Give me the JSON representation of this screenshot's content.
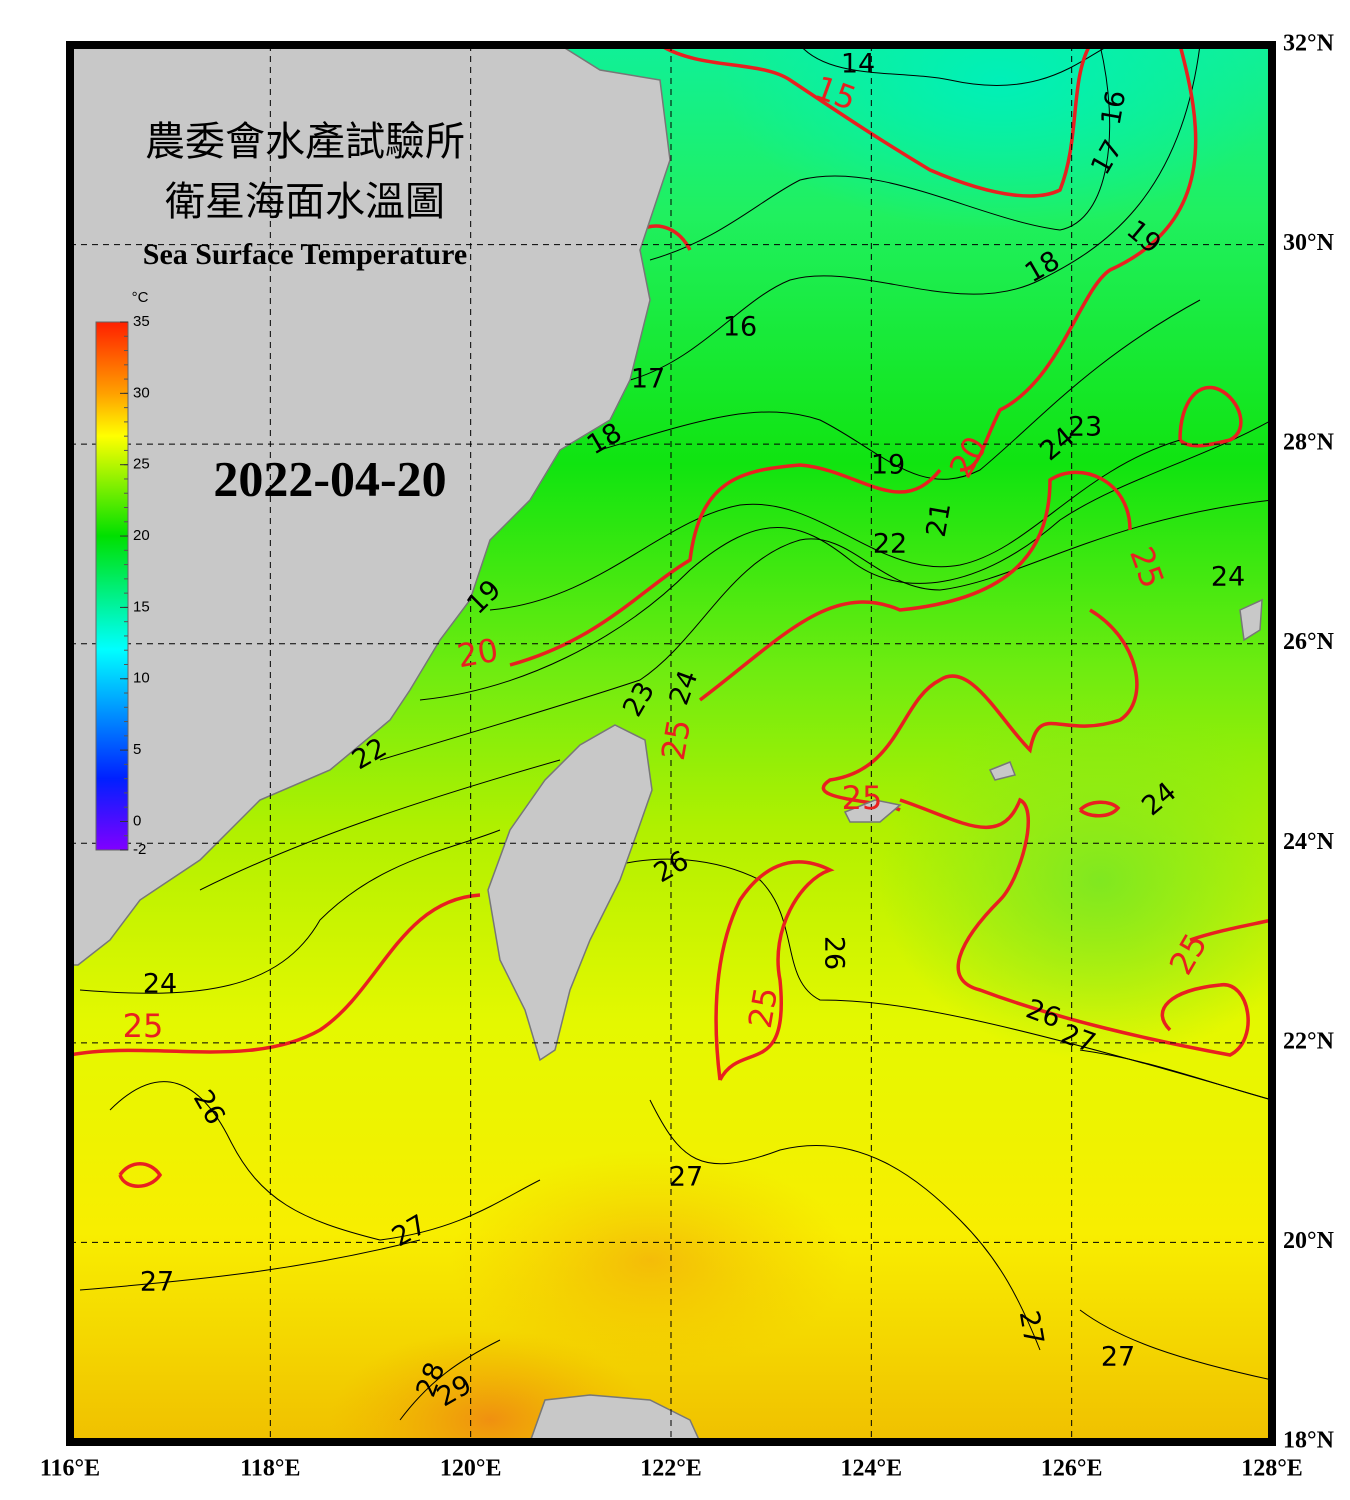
{
  "header": {
    "title_zh_1": "農委會水產試驗所",
    "title_zh_2": "衛星海面水溫圖",
    "title_en": "Sea Surface Temperature",
    "date": "2022-04-20"
  },
  "colorbar": {
    "unit": "°C",
    "range": [
      -2,
      35
    ],
    "ticks": [
      35,
      30,
      25,
      20,
      15,
      10,
      5,
      0,
      -2
    ]
  },
  "map": {
    "xlim": [
      116,
      128
    ],
    "ylim": [
      18,
      32
    ],
    "xticks": [
      {
        "value": 116,
        "label": "116°E"
      },
      {
        "value": 118,
        "label": "118°E"
      },
      {
        "value": 120,
        "label": "120°E"
      },
      {
        "value": 122,
        "label": "122°E"
      },
      {
        "value": 124,
        "label": "124°E"
      },
      {
        "value": 126,
        "label": "126°E"
      },
      {
        "value": 128,
        "label": "128°E"
      }
    ],
    "yticks": [
      {
        "value": 18,
        "label": "18°N"
      },
      {
        "value": 20,
        "label": "20°N"
      },
      {
        "value": 22,
        "label": "22°N"
      },
      {
        "value": 24,
        "label": "24°N"
      },
      {
        "value": 26,
        "label": "26°N"
      },
      {
        "value": 28,
        "label": "28°N"
      },
      {
        "value": 30,
        "label": "30°N"
      },
      {
        "value": 32,
        "label": "32°N"
      }
    ],
    "isotherm_labels": [
      14,
      16,
      17,
      19,
      18,
      16,
      17,
      18,
      19,
      23,
      24,
      21,
      22,
      19,
      23,
      24,
      22,
      26,
      24,
      24,
      26,
      24,
      26,
      27,
      26,
      27,
      27,
      27,
      27,
      27,
      28,
      29
    ],
    "major_isotherm_labels": [
      15,
      20,
      25,
      20,
      25,
      25,
      25,
      25,
      25
    ]
  }
}
